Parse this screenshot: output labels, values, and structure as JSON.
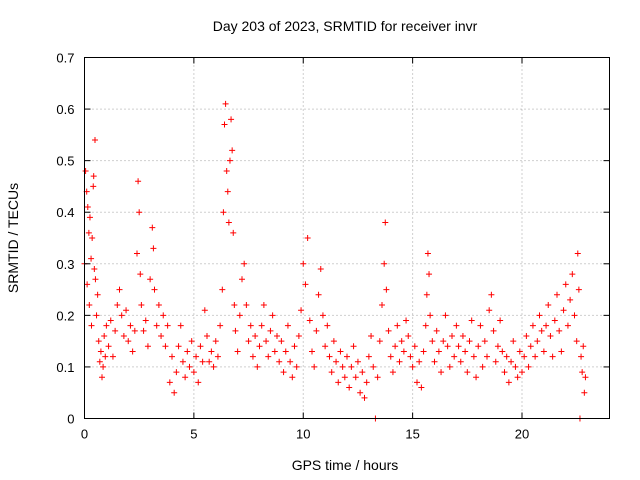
{
  "chart_data": {
    "type": "scatter",
    "title": "Day 203 of 2023, SRMTID for receiver invr",
    "xlabel": "GPS time / hours",
    "ylabel": "SRMTID / TECUs",
    "xlim": [
      0,
      24
    ],
    "ylim": [
      0,
      0.7
    ],
    "grid": true,
    "xticks": [
      0,
      5,
      10,
      15,
      20
    ],
    "xtick_labels": [
      "0",
      "5",
      "10",
      "15",
      "20"
    ],
    "yticks": [
      0,
      0.1,
      0.2,
      0.3,
      0.4,
      0.5,
      0.6,
      0.7
    ],
    "ytick_labels": [
      "0",
      "0.1",
      "0.2",
      "0.3",
      "0.4",
      "0.5",
      "0.6",
      "0.7"
    ],
    "marker": "plus",
    "color": "#ff0000",
    "series": [
      {
        "name": "SRMTID",
        "points": [
          [
            0.0,
            0.3
          ],
          [
            0.05,
            0.48
          ],
          [
            0.1,
            0.44
          ],
          [
            0.12,
            0.26
          ],
          [
            0.15,
            0.41
          ],
          [
            0.2,
            0.36
          ],
          [
            0.22,
            0.22
          ],
          [
            0.25,
            0.39
          ],
          [
            0.3,
            0.31
          ],
          [
            0.32,
            0.18
          ],
          [
            0.35,
            0.35
          ],
          [
            0.4,
            0.45
          ],
          [
            0.42,
            0.47
          ],
          [
            0.45,
            0.29
          ],
          [
            0.48,
            0.54
          ],
          [
            0.5,
            0.27
          ],
          [
            0.55,
            0.2
          ],
          [
            0.6,
            0.24
          ],
          [
            0.65,
            0.15
          ],
          [
            0.7,
            0.11
          ],
          [
            0.75,
            0.13
          ],
          [
            0.8,
            0.08
          ],
          [
            0.85,
            0.1
          ],
          [
            0.9,
            0.16
          ],
          [
            0.95,
            0.12
          ],
          [
            1.0,
            0.18
          ],
          [
            1.1,
            0.14
          ],
          [
            1.2,
            0.19
          ],
          [
            1.3,
            0.12
          ],
          [
            1.4,
            0.17
          ],
          [
            1.5,
            0.22
          ],
          [
            1.6,
            0.25
          ],
          [
            1.7,
            0.2
          ],
          [
            1.8,
            0.16
          ],
          [
            1.9,
            0.21
          ],
          [
            2.0,
            0.15
          ],
          [
            2.1,
            0.18
          ],
          [
            2.2,
            0.13
          ],
          [
            2.3,
            0.17
          ],
          [
            2.4,
            0.32
          ],
          [
            2.45,
            0.46
          ],
          [
            2.5,
            0.4
          ],
          [
            2.55,
            0.28
          ],
          [
            2.6,
            0.22
          ],
          [
            2.7,
            0.17
          ],
          [
            2.8,
            0.19
          ],
          [
            2.9,
            0.14
          ],
          [
            3.0,
            0.27
          ],
          [
            3.1,
            0.37
          ],
          [
            3.15,
            0.33
          ],
          [
            3.2,
            0.25
          ],
          [
            3.3,
            0.18
          ],
          [
            3.4,
            0.22
          ],
          [
            3.5,
            0.16
          ],
          [
            3.6,
            0.2
          ],
          [
            3.7,
            0.14
          ],
          [
            3.8,
            0.18
          ],
          [
            3.9,
            0.07
          ],
          [
            4.0,
            0.12
          ],
          [
            4.1,
            0.05
          ],
          [
            4.2,
            0.09
          ],
          [
            4.3,
            0.14
          ],
          [
            4.4,
            0.18
          ],
          [
            4.5,
            0.11
          ],
          [
            4.6,
            0.08
          ],
          [
            4.7,
            0.13
          ],
          [
            4.8,
            0.1
          ],
          [
            4.9,
            0.15
          ],
          [
            5.0,
            0.09
          ],
          [
            5.1,
            0.12
          ],
          [
            5.2,
            0.07
          ],
          [
            5.3,
            0.14
          ],
          [
            5.4,
            0.11
          ],
          [
            5.5,
            0.21
          ],
          [
            5.6,
            0.16
          ],
          [
            5.7,
            0.11
          ],
          [
            5.8,
            0.13
          ],
          [
            5.9,
            0.1
          ],
          [
            6.0,
            0.15
          ],
          [
            6.1,
            0.12
          ],
          [
            6.2,
            0.18
          ],
          [
            6.3,
            0.25
          ],
          [
            6.35,
            0.4
          ],
          [
            6.4,
            0.57
          ],
          [
            6.45,
            0.61
          ],
          [
            6.5,
            0.48
          ],
          [
            6.55,
            0.44
          ],
          [
            6.6,
            0.38
          ],
          [
            6.65,
            0.5
          ],
          [
            6.7,
            0.58
          ],
          [
            6.75,
            0.52
          ],
          [
            6.8,
            0.36
          ],
          [
            6.85,
            0.22
          ],
          [
            6.9,
            0.17
          ],
          [
            7.0,
            0.13
          ],
          [
            7.1,
            0.2
          ],
          [
            7.2,
            0.27
          ],
          [
            7.3,
            0.3
          ],
          [
            7.4,
            0.22
          ],
          [
            7.5,
            0.15
          ],
          [
            7.6,
            0.18
          ],
          [
            7.7,
            0.12
          ],
          [
            7.8,
            0.16
          ],
          [
            7.9,
            0.1
          ],
          [
            8.0,
            0.14
          ],
          [
            8.1,
            0.18
          ],
          [
            8.2,
            0.22
          ],
          [
            8.3,
            0.15
          ],
          [
            8.4,
            0.12
          ],
          [
            8.5,
            0.17
          ],
          [
            8.6,
            0.2
          ],
          [
            8.7,
            0.13
          ],
          [
            8.8,
            0.16
          ],
          [
            8.9,
            0.11
          ],
          [
            9.0,
            0.15
          ],
          [
            9.1,
            0.09
          ],
          [
            9.2,
            0.13
          ],
          [
            9.3,
            0.18
          ],
          [
            9.4,
            0.11
          ],
          [
            9.5,
            0.08
          ],
          [
            9.6,
            0.14
          ],
          [
            9.7,
            0.1
          ],
          [
            9.8,
            0.16
          ],
          [
            9.9,
            0.21
          ],
          [
            10.0,
            0.3
          ],
          [
            10.1,
            0.26
          ],
          [
            10.2,
            0.35
          ],
          [
            10.3,
            0.19
          ],
          [
            10.4,
            0.13
          ],
          [
            10.5,
            0.1
          ],
          [
            10.6,
            0.17
          ],
          [
            10.7,
            0.24
          ],
          [
            10.8,
            0.29
          ],
          [
            10.9,
            0.2
          ],
          [
            11.0,
            0.14
          ],
          [
            11.1,
            0.18
          ],
          [
            11.2,
            0.12
          ],
          [
            11.3,
            0.09
          ],
          [
            11.4,
            0.15
          ],
          [
            11.5,
            0.11
          ],
          [
            11.6,
            0.07
          ],
          [
            11.7,
            0.13
          ],
          [
            11.8,
            0.1
          ],
          [
            11.9,
            0.08
          ],
          [
            12.0,
            0.12
          ],
          [
            12.1,
            0.06
          ],
          [
            12.2,
            0.1
          ],
          [
            12.3,
            0.14
          ],
          [
            12.4,
            0.08
          ],
          [
            12.5,
            0.11
          ],
          [
            12.6,
            0.05
          ],
          [
            12.7,
            0.09
          ],
          [
            12.8,
            0.04
          ],
          [
            12.9,
            0.07
          ],
          [
            13.0,
            0.12
          ],
          [
            13.1,
            0.16
          ],
          [
            13.2,
            0.1
          ],
          [
            13.3,
            0.0
          ],
          [
            13.4,
            0.08
          ],
          [
            13.5,
            0.15
          ],
          [
            13.6,
            0.22
          ],
          [
            13.7,
            0.3
          ],
          [
            13.75,
            0.38
          ],
          [
            13.8,
            0.25
          ],
          [
            13.9,
            0.17
          ],
          [
            14.0,
            0.12
          ],
          [
            14.1,
            0.09
          ],
          [
            14.2,
            0.14
          ],
          [
            14.3,
            0.18
          ],
          [
            14.4,
            0.11
          ],
          [
            14.5,
            0.15
          ],
          [
            14.6,
            0.13
          ],
          [
            14.7,
            0.19
          ],
          [
            14.8,
            0.16
          ],
          [
            14.9,
            0.12
          ],
          [
            15.0,
            0.1
          ],
          [
            15.1,
            0.14
          ],
          [
            15.2,
            0.07
          ],
          [
            15.3,
            0.11
          ],
          [
            15.4,
            0.06
          ],
          [
            15.5,
            0.13
          ],
          [
            15.6,
            0.18
          ],
          [
            15.65,
            0.24
          ],
          [
            15.7,
            0.32
          ],
          [
            15.75,
            0.28
          ],
          [
            15.8,
            0.2
          ],
          [
            15.9,
            0.15
          ],
          [
            16.0,
            0.11
          ],
          [
            16.1,
            0.17
          ],
          [
            16.2,
            0.13
          ],
          [
            16.3,
            0.09
          ],
          [
            16.4,
            0.15
          ],
          [
            16.5,
            0.2
          ],
          [
            16.6,
            0.14
          ],
          [
            16.7,
            0.1
          ],
          [
            16.8,
            0.16
          ],
          [
            16.9,
            0.12
          ],
          [
            17.0,
            0.18
          ],
          [
            17.1,
            0.14
          ],
          [
            17.2,
            0.11
          ],
          [
            17.3,
            0.16
          ],
          [
            17.4,
            0.13
          ],
          [
            17.5,
            0.09
          ],
          [
            17.6,
            0.15
          ],
          [
            17.7,
            0.19
          ],
          [
            17.8,
            0.12
          ],
          [
            17.9,
            0.08
          ],
          [
            18.0,
            0.14
          ],
          [
            18.1,
            0.18
          ],
          [
            18.2,
            0.1
          ],
          [
            18.3,
            0.15
          ],
          [
            18.4,
            0.12
          ],
          [
            18.5,
            0.21
          ],
          [
            18.6,
            0.24
          ],
          [
            18.7,
            0.17
          ],
          [
            18.8,
            0.11
          ],
          [
            18.9,
            0.14
          ],
          [
            19.0,
            0.19
          ],
          [
            19.1,
            0.13
          ],
          [
            19.2,
            0.09
          ],
          [
            19.3,
            0.12
          ],
          [
            19.4,
            0.07
          ],
          [
            19.5,
            0.11
          ],
          [
            19.6,
            0.15
          ],
          [
            19.7,
            0.1
          ],
          [
            19.8,
            0.08
          ],
          [
            19.9,
            0.13
          ],
          [
            20.0,
            0.09
          ],
          [
            20.1,
            0.12
          ],
          [
            20.2,
            0.16
          ],
          [
            20.3,
            0.1
          ],
          [
            20.4,
            0.14
          ],
          [
            20.5,
            0.18
          ],
          [
            20.6,
            0.12
          ],
          [
            20.7,
            0.15
          ],
          [
            20.8,
            0.2
          ],
          [
            20.9,
            0.17
          ],
          [
            21.0,
            0.13
          ],
          [
            21.1,
            0.18
          ],
          [
            21.2,
            0.22
          ],
          [
            21.3,
            0.16
          ],
          [
            21.4,
            0.12
          ],
          [
            21.5,
            0.19
          ],
          [
            21.6,
            0.24
          ],
          [
            21.7,
            0.17
          ],
          [
            21.8,
            0.13
          ],
          [
            21.9,
            0.21
          ],
          [
            22.0,
            0.26
          ],
          [
            22.1,
            0.18
          ],
          [
            22.2,
            0.23
          ],
          [
            22.3,
            0.28
          ],
          [
            22.4,
            0.2
          ],
          [
            22.5,
            0.15
          ],
          [
            22.55,
            0.32
          ],
          [
            22.6,
            0.25
          ],
          [
            22.65,
            0.0
          ],
          [
            22.7,
            0.12
          ],
          [
            22.75,
            0.09
          ],
          [
            22.8,
            0.14
          ],
          [
            22.85,
            0.05
          ],
          [
            22.9,
            0.08
          ]
        ]
      }
    ]
  }
}
